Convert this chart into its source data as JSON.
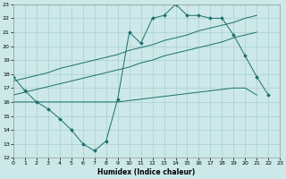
{
  "xlabel": "Humidex (Indice chaleur)",
  "background_color": "#cce8e8",
  "grid_color": "#aacfcf",
  "line_color": "#1a6e6e",
  "xlim": [
    0,
    23
  ],
  "ylim": [
    12,
    23
  ],
  "xticks": [
    0,
    1,
    2,
    3,
    4,
    5,
    6,
    7,
    8,
    9,
    10,
    11,
    12,
    13,
    14,
    15,
    16,
    17,
    18,
    19,
    20,
    21,
    22,
    23
  ],
  "yticks": [
    12,
    13,
    14,
    15,
    16,
    17,
    18,
    19,
    20,
    21,
    22,
    23
  ],
  "s1_x": [
    0,
    1,
    2,
    3,
    4,
    5,
    6,
    7,
    8,
    9,
    10,
    11,
    12,
    13,
    14,
    15,
    16,
    17,
    18,
    19,
    20,
    21,
    22,
    23
  ],
  "s1_y": [
    17.8,
    16.8,
    16.0,
    15.5,
    14.8,
    14.0,
    13.0,
    12.5,
    13.2,
    16.2,
    21.0,
    20.2,
    22.0,
    22.2,
    23.0,
    22.2,
    22.2,
    22.0,
    22.0,
    20.8,
    19.3,
    17.8,
    16.5,
    null
  ],
  "s2_x": [
    0,
    1,
    2,
    3,
    4,
    5,
    6,
    7,
    8,
    9,
    10,
    11,
    12,
    13,
    14,
    15,
    16,
    17,
    18,
    19,
    20,
    21,
    22,
    23
  ],
  "s2_y": [
    16.0,
    16.0,
    16.0,
    16.0,
    16.0,
    16.0,
    16.0,
    16.0,
    16.0,
    16.0,
    16.1,
    16.2,
    16.3,
    16.4,
    16.5,
    16.6,
    16.7,
    16.8,
    16.9,
    17.0,
    17.0,
    16.5,
    null,
    null
  ],
  "s3_x": [
    0,
    1,
    2,
    3,
    4,
    5,
    6,
    7,
    8,
    9,
    10,
    11,
    12,
    13,
    14,
    15,
    16,
    17,
    18,
    19,
    20,
    21,
    22,
    23
  ],
  "s3_y": [
    16.5,
    16.7,
    16.9,
    17.1,
    17.3,
    17.5,
    17.7,
    17.9,
    18.1,
    18.3,
    18.5,
    18.8,
    19.0,
    19.3,
    19.5,
    19.7,
    19.9,
    20.1,
    20.3,
    20.6,
    20.8,
    21.0,
    null,
    null
  ],
  "s4_x": [
    0,
    1,
    2,
    3,
    4,
    5,
    6,
    7,
    8,
    9,
    10,
    11,
    12,
    13,
    14,
    15,
    16,
    17,
    18,
    19,
    20,
    21,
    22,
    23
  ],
  "s4_y": [
    17.5,
    17.7,
    17.9,
    18.1,
    18.4,
    18.6,
    18.8,
    19.0,
    19.2,
    19.4,
    19.7,
    19.9,
    20.1,
    20.4,
    20.6,
    20.8,
    21.1,
    21.3,
    21.5,
    21.7,
    22.0,
    22.2,
    null,
    null
  ]
}
